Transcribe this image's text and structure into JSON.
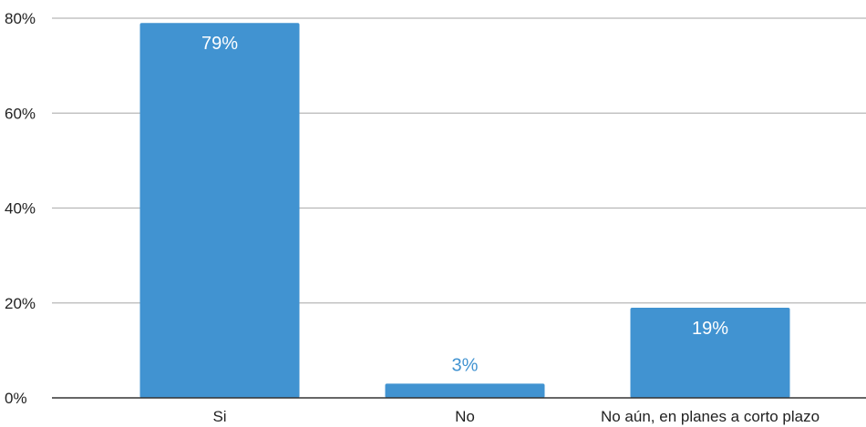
{
  "chart_data": {
    "type": "bar",
    "categories": [
      "Si",
      "No",
      "No aún, en planes a corto plazo"
    ],
    "values": [
      79,
      3,
      19
    ],
    "data_labels": [
      "79%",
      "3%",
      "19%"
    ],
    "title": "",
    "xlabel": "",
    "ylabel": "",
    "ylim": [
      0,
      80
    ],
    "yticks": [
      0,
      20,
      40,
      60,
      80
    ],
    "ytick_labels": [
      "0%",
      "20%",
      "40%",
      "60%",
      "80%"
    ],
    "grid": true,
    "legend": "none",
    "colors": {
      "bar": "#4193d1",
      "label_inside": "#ffffff",
      "label_outside": "#4193d1",
      "grid": "#b7b7b7",
      "axis": "#333333",
      "text": "#222222"
    }
  }
}
